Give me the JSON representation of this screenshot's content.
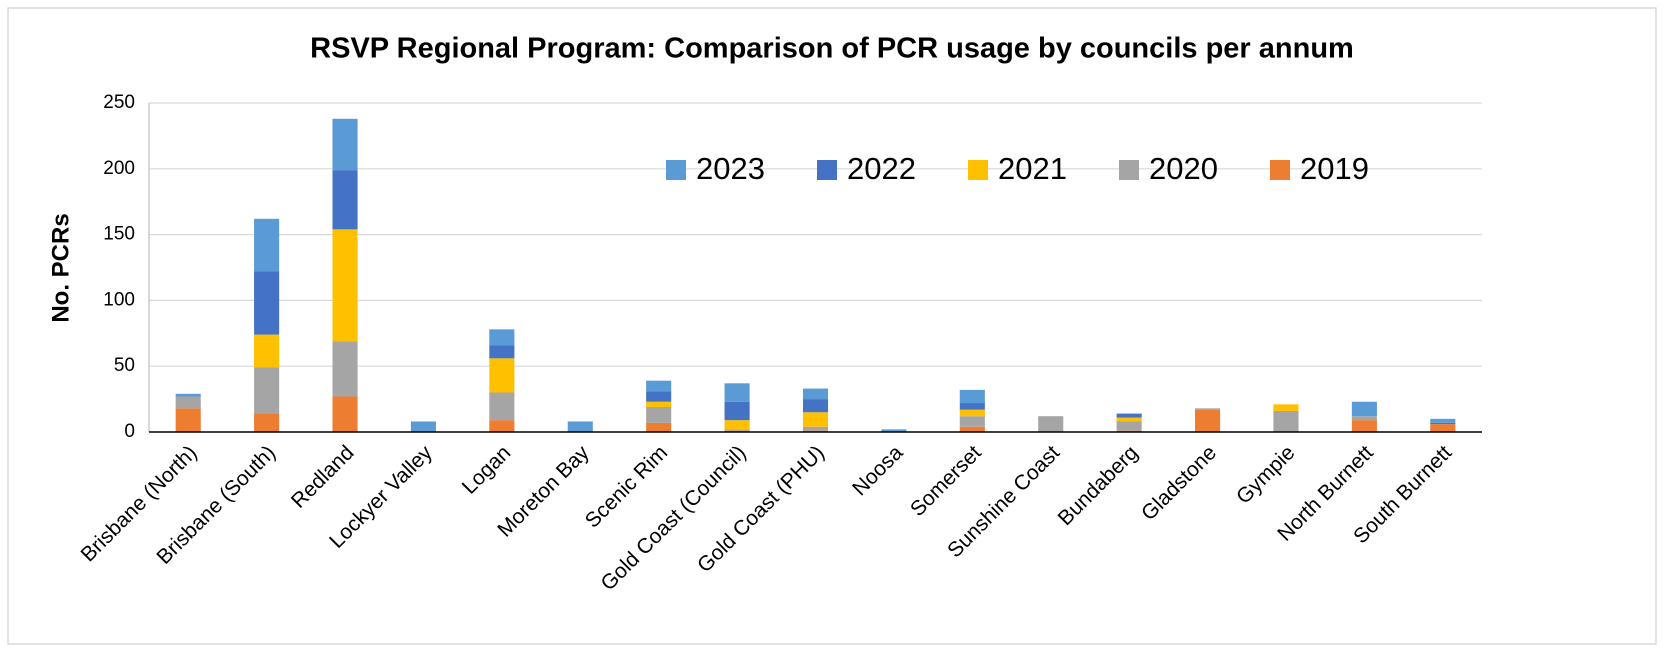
{
  "chart_data": {
    "type": "stacked_bar",
    "title": "RSVP Regional Program: Comparison of PCR usage by councils per annum",
    "y_label": "No. PCRs",
    "categories": [
      "Brisbane (North)",
      "Brisbane (South)",
      "Redland",
      "Lockyer Valley",
      "Logan",
      "Moreton Bay",
      "Scenic Rim",
      "Gold Coast (Council)",
      "Gold Coast (PHU)",
      "Noosa",
      "Somerset",
      "Sunshine Coast",
      "Bundaberg",
      "Gladstone",
      "Gympie",
      "North Burnett",
      "South Burnett"
    ],
    "series": [
      {
        "name": "2019",
        "color": "#ed7d31",
        "values": [
          18,
          14,
          27,
          0,
          9,
          0,
          7,
          1,
          1,
          0,
          4,
          0,
          1,
          17,
          0,
          9,
          6
        ]
      },
      {
        "name": "2020",
        "color": "#a5a5a5",
        "values": [
          9,
          35,
          42,
          0,
          21,
          0,
          12,
          1,
          3,
          0,
          8,
          12,
          7,
          1,
          16,
          3,
          0
        ]
      },
      {
        "name": "2021",
        "color": "#ffc000",
        "values": [
          0,
          25,
          85,
          0,
          26,
          0,
          4,
          7,
          11,
          0,
          5,
          0,
          3,
          0,
          5,
          0,
          0
        ]
      },
      {
        "name": "2022",
        "color": "#4472c4",
        "values": [
          0,
          48,
          45,
          0,
          10,
          0,
          8,
          14,
          10,
          0,
          5,
          0,
          3,
          0,
          0,
          0,
          1
        ]
      },
      {
        "name": "2023",
        "color": "#5b9bd5",
        "values": [
          2,
          40,
          39,
          8,
          12,
          8,
          8,
          14,
          8,
          2,
          10,
          0,
          0,
          0,
          0,
          11,
          3
        ]
      }
    ],
    "ylim": [
      0,
      250
    ],
    "yticks": [
      0,
      50,
      100,
      150,
      200,
      250
    ],
    "grid": true
  }
}
